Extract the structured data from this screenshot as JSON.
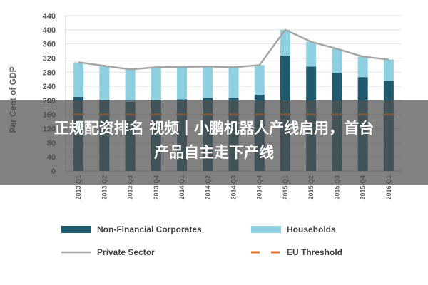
{
  "chart_data": {
    "type": "bar",
    "stacked": true,
    "ylabel": "Per Cent of GDP",
    "ylim": [
      0,
      440
    ],
    "yticks": [
      0,
      40,
      80,
      120,
      160,
      200,
      240,
      280,
      320,
      360,
      400,
      440
    ],
    "grid": true,
    "legend_position": "bottom",
    "categories": [
      "2013 Q1",
      "2013 Q2",
      "2013 Q3",
      "2013 Q4",
      "2014 Q1",
      "2014 Q2",
      "2014 Q3",
      "2014 Q4",
      "2015 Q1",
      "2015 Q2",
      "2015 Q3",
      "2015 Q4",
      "2016 Q1"
    ],
    "series": [
      {
        "name": "Non-Financial Corporates",
        "kind": "bar",
        "color": "#1f5a6e",
        "values": [
          210,
          202,
          196,
          202,
          203,
          208,
          208,
          216,
          326,
          296,
          278,
          266,
          256
        ]
      },
      {
        "name": "Households",
        "kind": "bar",
        "color": "#8fd0e0",
        "values": [
          98,
          96,
          92,
          92,
          92,
          88,
          86,
          84,
          74,
          70,
          68,
          58,
          60
        ]
      },
      {
        "name": "Private Sector",
        "kind": "line",
        "color": "#a6a6a6",
        "values": [
          308,
          298,
          288,
          294,
          295,
          296,
          294,
          300,
          400,
          366,
          346,
          324,
          316
        ]
      },
      {
        "name": "EU Threshold",
        "kind": "dashed-line",
        "color": "#e0742a",
        "values": [
          160,
          160,
          160,
          160,
          160,
          160,
          160,
          160,
          160,
          160,
          160,
          160,
          160
        ]
      }
    ]
  },
  "overlay": {
    "line1": "正规配资排名 视频｜小鹏机器人产线启用，首台",
    "line2": "产品自主走下产线"
  }
}
